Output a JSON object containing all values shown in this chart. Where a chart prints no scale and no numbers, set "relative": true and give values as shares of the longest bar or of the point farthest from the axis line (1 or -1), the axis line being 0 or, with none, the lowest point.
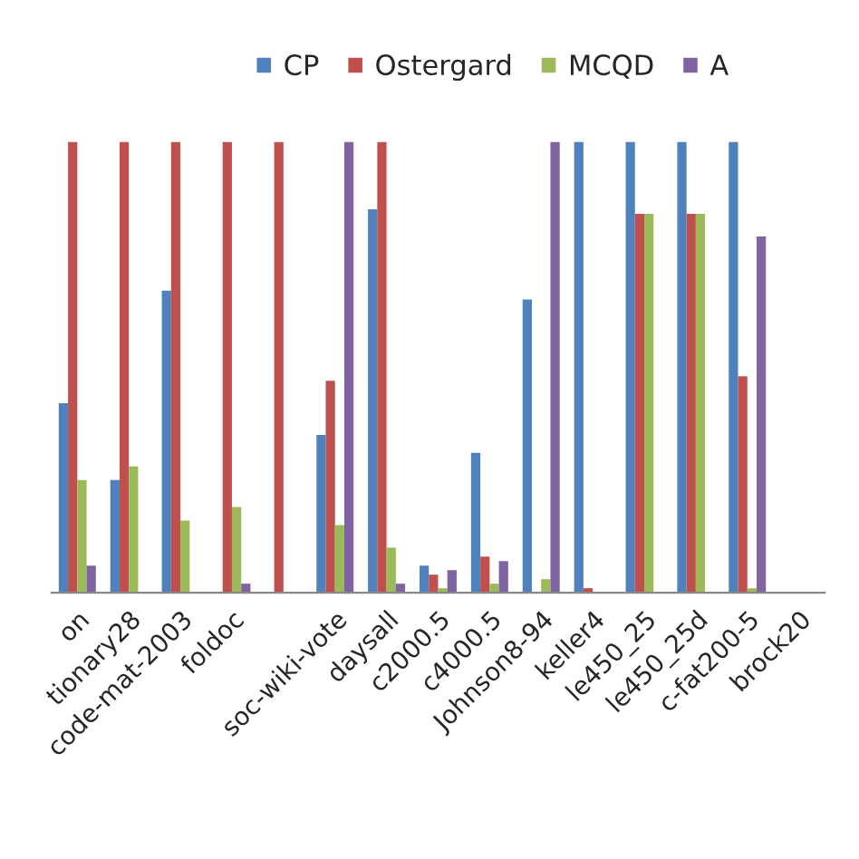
{
  "chart_data": {
    "type": "bar",
    "relative": true,
    "legend": "top",
    "grid": false,
    "categories": [
      "on",
      "tionary28",
      "code-mat-2003",
      "foldoc",
      null,
      "soc-wiki-vote",
      "daysall",
      "c2000.5",
      "c4000.5",
      "Johnson8-94",
      "keller4",
      "le450_25",
      "le450_25d",
      "c-fat200-5",
      "brock20"
    ],
    "series": [
      {
        "name": "CP",
        "color": "#4f81bd",
        "values": [
          0.42,
          0.25,
          0.67,
          null,
          null,
          0.35,
          0.85,
          0.06,
          0.31,
          0.65,
          1,
          1,
          1,
          1,
          null
        ]
      },
      {
        "name": "Ostergard",
        "color": "#c0504d",
        "values": [
          1,
          1,
          1,
          1,
          1,
          0.47,
          1,
          0.04,
          0.08,
          null,
          0.01,
          0.84,
          0.84,
          0.48,
          null
        ]
      },
      {
        "name": "MCQD",
        "color": "#9bbb59",
        "values": [
          0.25,
          0.28,
          0.16,
          0.19,
          null,
          0.15,
          0.1,
          0.01,
          0.02,
          0.03,
          null,
          0.84,
          0.84,
          0.01,
          null
        ]
      },
      {
        "name": "A",
        "color": "#8064a2",
        "values": [
          0.06,
          null,
          null,
          0.02,
          null,
          1,
          0.02,
          0.05,
          0.07,
          1,
          null,
          null,
          null,
          0.79,
          null
        ]
      }
    ]
  }
}
